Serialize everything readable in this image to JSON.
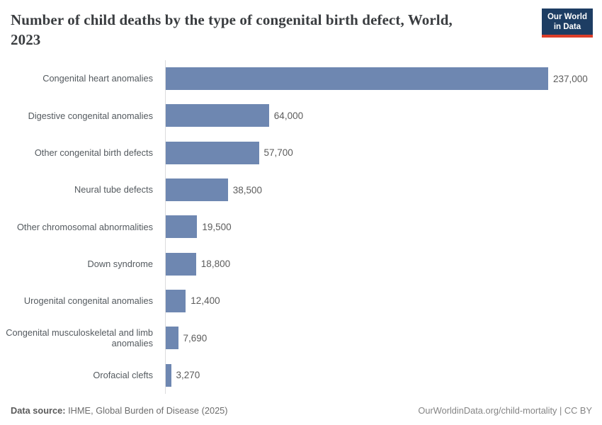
{
  "header": {
    "title_lines": [
      "Number of child deaths by the type of congenital birth defect, World,",
      "2023"
    ],
    "logo": {
      "line1": "Our World",
      "line2": "in Data"
    }
  },
  "chart_data": {
    "type": "bar",
    "orientation": "horizontal",
    "title": "Number of child deaths by the type of congenital birth defect, World, 2023",
    "categories": [
      "Congenital heart anomalies",
      "Digestive congenital anomalies",
      "Other congenital birth defects",
      "Neural tube defects",
      "Other chromosomal abnormalities",
      "Down syndrome",
      "Urogenital congenital anomalies",
      "Congenital musculoskeletal and limb anomalies",
      "Orofacial clefts"
    ],
    "values": [
      237000,
      64000,
      57700,
      38500,
      19500,
      18800,
      12400,
      7690,
      3270
    ],
    "value_labels": [
      "237,000",
      "64,000",
      "57,700",
      "38,500",
      "19,500",
      "18,800",
      "12,400",
      "7,690",
      "3,270"
    ],
    "xlabel": "",
    "ylabel": "",
    "xlim": [
      0,
      237000
    ],
    "grid": false,
    "legend": false,
    "bar_color": "#6e87b1"
  },
  "footer": {
    "data_source_label": "Data source:",
    "data_source_value": " IHME, Global Burden of Disease (2025)",
    "credit": "OurWorldinData.org/child-mortality | CC BY"
  },
  "colors": {
    "bar": "#6e87b1",
    "axis_line": "#dcdcdd",
    "category_label": "#545a5f",
    "value_label": "#5c5c5c",
    "title": "#3a3d40",
    "logo_background": "#1d3d63",
    "logo_accent": "#dc3e2a"
  }
}
